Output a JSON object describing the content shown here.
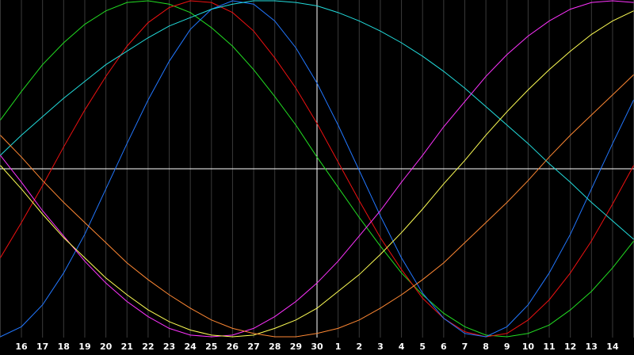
{
  "chart_data": {
    "type": "line",
    "categories": [
      null,
      "16",
      "17",
      "18",
      "19",
      "20",
      "21",
      "22",
      "23",
      "24",
      "25",
      "26",
      "27",
      "28",
      "29",
      "30",
      "1",
      "2",
      "3",
      "4",
      "5",
      "6",
      "7",
      "8",
      "9",
      "10",
      "11",
      "12",
      "13",
      "14",
      null
    ],
    "ylim": [
      -100,
      100
    ],
    "grid": true,
    "series": [
      {
        "color": "#22dd22",
        "values": [
          29,
          46,
          62,
          75,
          86,
          94,
          99,
          100,
          98,
          93,
          84,
          73,
          59,
          43,
          26,
          7,
          -11,
          -29,
          -46,
          -62,
          -75,
          -86,
          -94,
          -99,
          -100,
          -98,
          -93,
          -84,
          -73,
          -59,
          -43
        ]
      },
      {
        "color": "#ee1111",
        "values": [
          -53,
          -32,
          -10,
          13,
          35,
          55,
          73,
          87,
          96,
          100,
          99,
          93,
          82,
          66,
          48,
          27,
          4,
          -19,
          -41,
          -60,
          -77,
          -89,
          -97,
          -100,
          -98,
          -90,
          -78,
          -62,
          -43,
          -21,
          2
        ]
      },
      {
        "color": "#2277ff",
        "values": [
          -100,
          -94,
          -81,
          -62,
          -39,
          -12,
          15,
          41,
          64,
          83,
          95,
          100,
          98,
          88,
          72,
          51,
          26,
          -1,
          -28,
          -53,
          -74,
          -89,
          -98,
          -100,
          -94,
          -81,
          -62,
          -39,
          -12,
          15,
          41
        ]
      },
      {
        "color": "#22dddd",
        "values": [
          8,
          20,
          31,
          42,
          52,
          62,
          70,
          78,
          85,
          90,
          95,
          98,
          100,
          100,
          99,
          97,
          93,
          88,
          82,
          75,
          67,
          58,
          48,
          37,
          26,
          15,
          3,
          -8,
          -20,
          -31,
          -42
        ]
      },
      {
        "color": "#ff33ff",
        "values": [
          8,
          -8,
          -25,
          -40,
          -55,
          -68,
          -79,
          -88,
          -95,
          -99,
          -100,
          -99,
          -95,
          -88,
          -79,
          -68,
          -55,
          -40,
          -25,
          -8,
          8,
          25,
          40,
          55,
          68,
          79,
          88,
          95,
          99,
          100,
          99
        ]
      },
      {
        "color": "#ffff55",
        "values": [
          2,
          -12,
          -27,
          -41,
          -53,
          -65,
          -75,
          -84,
          -91,
          -96,
          -99,
          -100,
          -99,
          -95,
          -90,
          -83,
          -73,
          -63,
          -51,
          -38,
          -24,
          -9,
          5,
          20,
          34,
          47,
          59,
          70,
          80,
          88,
          94
        ]
      },
      {
        "color": "#ff8833",
        "values": [
          20,
          7,
          -7,
          -20,
          -32,
          -44,
          -56,
          -66,
          -75,
          -83,
          -90,
          -95,
          -98,
          -100,
          -100,
          -98,
          -95,
          -90,
          -83,
          -75,
          -66,
          -56,
          -44,
          -32,
          -20,
          -7,
          7,
          20,
          32,
          44,
          56
        ]
      }
    ]
  }
}
